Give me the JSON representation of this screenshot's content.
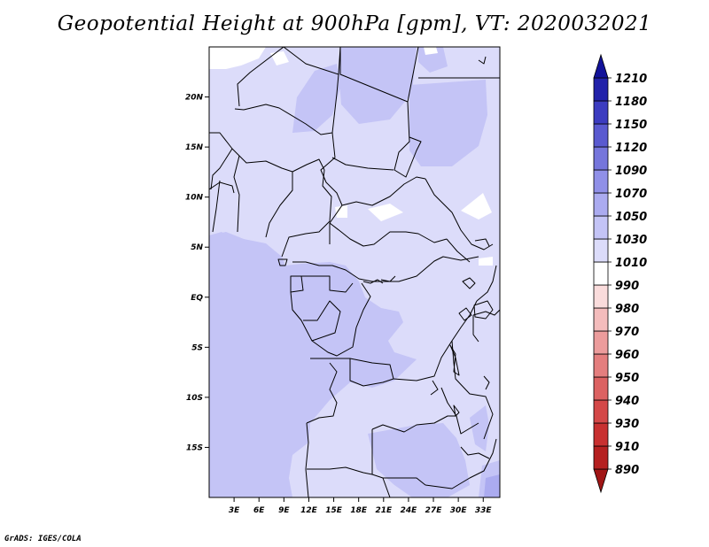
{
  "title": "Geopotential Height at 900hPa [gpm], VT: 2020032021",
  "credit": "GrADS: IGES/COLA",
  "chart_data": {
    "type": "heatmap",
    "title": "Geopotential Height at 900hPa [gpm], VT: 2020032021",
    "variable": "Geopotential Height",
    "level": "900hPa",
    "units": "gpm",
    "valid_time": "2020032021",
    "lon_range": [
      0,
      35
    ],
    "lat_range": [
      -20,
      25
    ],
    "lat_ticks": [
      {
        "value": 20,
        "label": "20N"
      },
      {
        "value": 15,
        "label": "15N"
      },
      {
        "value": 10,
        "label": "10N"
      },
      {
        "value": 5,
        "label": "5N"
      },
      {
        "value": 0,
        "label": "EQ"
      },
      {
        "value": -5,
        "label": "5S"
      },
      {
        "value": -10,
        "label": "10S"
      },
      {
        "value": -15,
        "label": "15S"
      }
    ],
    "lon_ticks": [
      {
        "value": 3,
        "label": "3E"
      },
      {
        "value": 6,
        "label": "6E"
      },
      {
        "value": 9,
        "label": "9E"
      },
      {
        "value": 12,
        "label": "12E"
      },
      {
        "value": 15,
        "label": "15E"
      },
      {
        "value": 18,
        "label": "18E"
      },
      {
        "value": 21,
        "label": "21E"
      },
      {
        "value": 24,
        "label": "24E"
      },
      {
        "value": 27,
        "label": "27E"
      },
      {
        "value": 30,
        "label": "30E"
      },
      {
        "value": 33,
        "label": "33E"
      }
    ],
    "colorbar": {
      "levels": [
        890,
        910,
        930,
        940,
        950,
        960,
        970,
        980,
        990,
        1010,
        1030,
        1050,
        1070,
        1090,
        1120,
        1150,
        1180,
        1210
      ],
      "colors": [
        "#a01515",
        "#b52020",
        "#c83030",
        "#d44848",
        "#dc6262",
        "#e47e7e",
        "#ec9c9c",
        "#f4bcbc",
        "#fadcdc",
        "#ffffff",
        "#dcdcfa",
        "#c4c4f6",
        "#ababf0",
        "#9090e8",
        "#7676dc",
        "#5a5ad0",
        "#3c3cc0",
        "#2222aa",
        "#12129a"
      ]
    },
    "dominant_range": [
      1010,
      1050
    ]
  }
}
